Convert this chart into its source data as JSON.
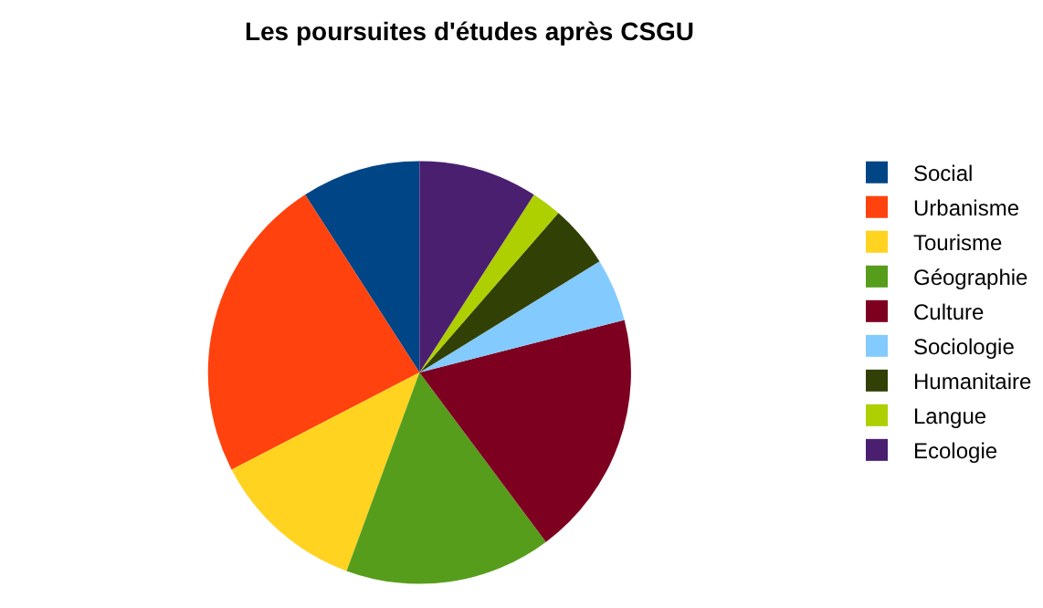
{
  "chart_data": {
    "type": "pie",
    "title": "Les poursuites d'études après CSGU",
    "categories": [
      "Social",
      "Urbanisme",
      "Tourisme",
      "Géographie",
      "Culture",
      "Sociologie",
      "Humanitaire",
      "Langue",
      "Ecologie"
    ],
    "values": [
      9.1,
      23.5,
      11.8,
      15.8,
      18.8,
      4.8,
      4.8,
      2.3,
      9.1
    ],
    "colors": [
      "#004586",
      "#ff420e",
      "#ffd320",
      "#579d1c",
      "#7e0021",
      "#83caff",
      "#314004",
      "#aecf00",
      "#4b1f6f"
    ],
    "legend": "right"
  }
}
